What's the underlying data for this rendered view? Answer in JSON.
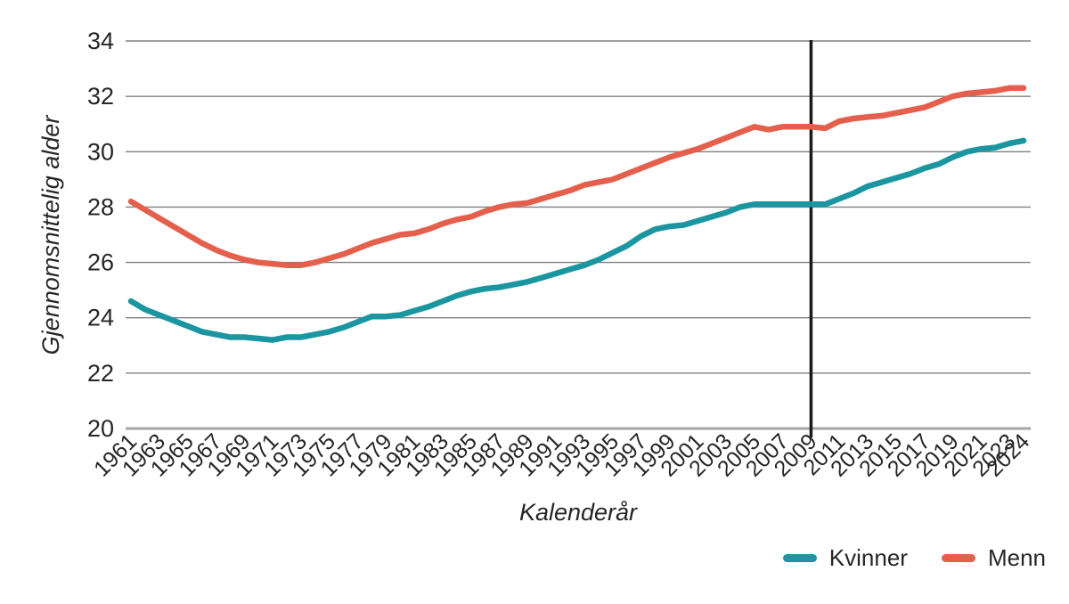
{
  "figure": {
    "y_axis_title": "Gjennomsnittelig alder",
    "x_axis_title": "Kalenderår",
    "background_color": "#ffffff",
    "text_color": "#262626",
    "gridline_color": "#808080",
    "axis_line_color": "#a6a6a6",
    "reference_line_color": "#1a1a1a"
  },
  "legend": {
    "items": [
      {
        "label": "Kvinner",
        "color": "#1B96A1"
      },
      {
        "label": "Menn",
        "color": "#E5604C"
      }
    ]
  },
  "chart_data": {
    "type": "line",
    "title": "",
    "xlabel": "Kalenderår",
    "ylabel": "Gjennomsnittelig alder",
    "ylim": [
      20,
      34
    ],
    "y_ticks": [
      20,
      22,
      24,
      26,
      28,
      30,
      32,
      34
    ],
    "grid": "horizontal",
    "legend_position": "bottom-right",
    "reference_line_x": 2009,
    "x_tick_labels": [
      1961,
      1963,
      1965,
      1967,
      1969,
      1971,
      1973,
      1975,
      1977,
      1979,
      1981,
      1983,
      1985,
      1987,
      1989,
      1991,
      1993,
      1995,
      1997,
      1999,
      2001,
      2003,
      2005,
      2007,
      2009,
      2011,
      2013,
      2015,
      2017,
      2019,
      2021,
      2023,
      2024
    ],
    "x": [
      1961,
      1962,
      1963,
      1964,
      1965,
      1966,
      1967,
      1968,
      1969,
      1970,
      1971,
      1972,
      1973,
      1974,
      1975,
      1976,
      1977,
      1978,
      1979,
      1980,
      1981,
      1982,
      1983,
      1984,
      1985,
      1986,
      1987,
      1988,
      1989,
      1990,
      1991,
      1992,
      1993,
      1994,
      1995,
      1996,
      1997,
      1998,
      1999,
      2000,
      2001,
      2002,
      2003,
      2004,
      2005,
      2006,
      2007,
      2008,
      2009,
      2010,
      2011,
      2012,
      2013,
      2014,
      2015,
      2016,
      2017,
      2018,
      2019,
      2020,
      2021,
      2022,
      2023,
      2024
    ],
    "series": [
      {
        "name": "Kvinner",
        "color": "#1B96A1",
        "values": [
          24.6,
          24.3,
          24.1,
          23.9,
          23.7,
          23.5,
          23.4,
          23.3,
          23.3,
          23.25,
          23.2,
          23.3,
          23.3,
          23.4,
          23.5,
          23.65,
          23.85,
          24.05,
          24.05,
          24.1,
          24.25,
          24.4,
          24.6,
          24.8,
          24.95,
          25.05,
          25.1,
          25.2,
          25.3,
          25.45,
          25.6,
          25.75,
          25.9,
          26.1,
          26.35,
          26.6,
          26.95,
          27.2,
          27.3,
          27.35,
          27.5,
          27.65,
          27.8,
          28.0,
          28.1,
          28.1,
          28.1,
          28.1,
          28.1,
          28.1,
          28.3,
          28.5,
          28.75,
          28.9,
          29.05,
          29.2,
          29.4,
          29.55,
          29.8,
          30.0,
          30.1,
          30.15,
          30.3,
          30.4
        ]
      },
      {
        "name": "Menn",
        "color": "#E5604C",
        "values": [
          28.2,
          27.9,
          27.6,
          27.3,
          27.0,
          26.7,
          26.45,
          26.25,
          26.1,
          26.0,
          25.95,
          25.9,
          25.9,
          26.0,
          26.15,
          26.3,
          26.5,
          26.7,
          26.85,
          27.0,
          27.05,
          27.2,
          27.4,
          27.55,
          27.65,
          27.85,
          28.0,
          28.1,
          28.15,
          28.3,
          28.45,
          28.6,
          28.8,
          28.9,
          29.0,
          29.2,
          29.4,
          29.6,
          29.8,
          29.95,
          30.1,
          30.3,
          30.5,
          30.7,
          30.9,
          30.8,
          30.9,
          30.9,
          30.9,
          30.85,
          31.1,
          31.2,
          31.25,
          31.3,
          31.4,
          31.5,
          31.6,
          31.8,
          32.0,
          32.1,
          32.15,
          32.2,
          32.3,
          32.3
        ]
      }
    ]
  }
}
